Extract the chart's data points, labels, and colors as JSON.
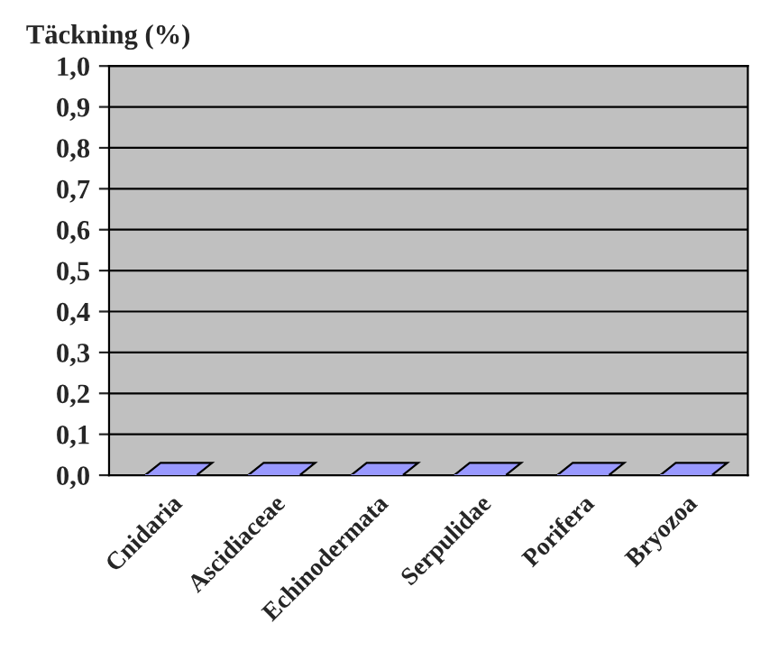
{
  "chart_data": {
    "type": "bar",
    "ylabel": "Täckning (%)",
    "categories": [
      "Cnidaria",
      "Ascidiaceae",
      "Echinodermata",
      "Serpulidae",
      "Porifera",
      "Bryozoa"
    ],
    "values": [
      0,
      0,
      0,
      0,
      0,
      0
    ],
    "color": "#9999ff",
    "ylim": [
      0,
      1
    ],
    "yticks": [
      {
        "value": 0,
        "label": "0,0"
      },
      {
        "value": 0.1,
        "label": "0,1"
      },
      {
        "value": 0.2,
        "label": "0,2"
      },
      {
        "value": 0.3,
        "label": "0,3"
      },
      {
        "value": 0.4,
        "label": "0,4"
      },
      {
        "value": 0.5,
        "label": "0,5"
      },
      {
        "value": 0.6,
        "label": "0,6"
      },
      {
        "value": 0.7,
        "label": "0,7"
      },
      {
        "value": 0.8,
        "label": "0,8"
      },
      {
        "value": 0.9,
        "label": "0,9"
      },
      {
        "value": 1,
        "label": "1,0"
      }
    ],
    "grid": "y"
  }
}
